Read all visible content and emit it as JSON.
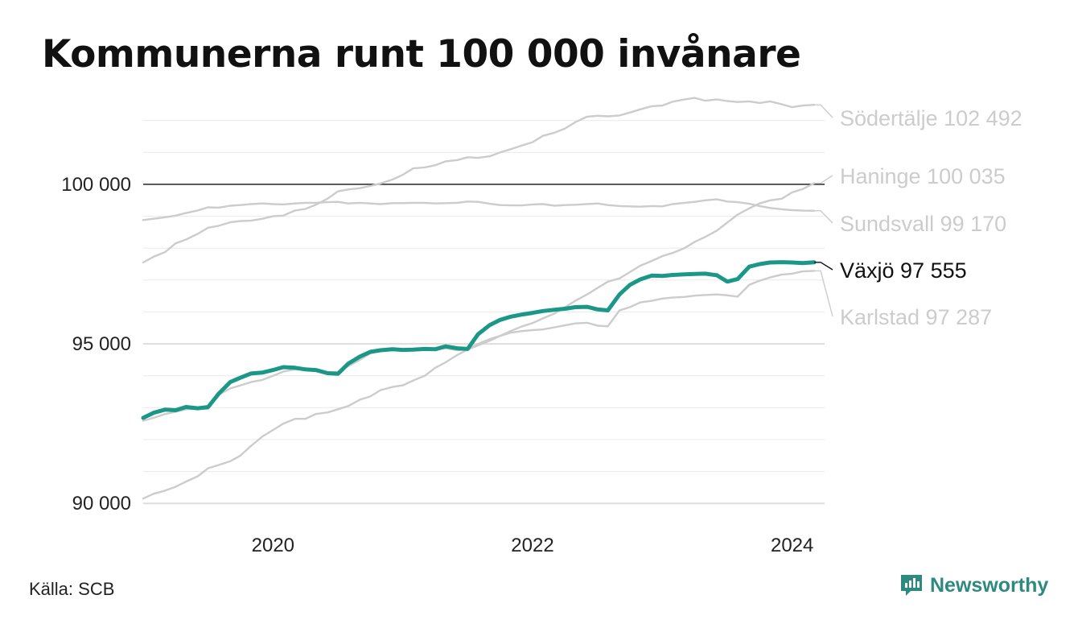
{
  "title": "Kommunerna runt 100 000 invånare",
  "source": "Källa: SCB",
  "brand": "Newsworthy",
  "icons": {
    "brand_logo": "newsworthy-logo-icon"
  },
  "colors": {
    "highlight": "#1a9786",
    "muted": "#cccccc",
    "reference_line": "#111111",
    "grid": "#e3e3e3",
    "brand": "#2e8a80"
  },
  "chart_data": {
    "type": "line",
    "title": "Kommunerna runt 100 000 invånare",
    "xlim": [
      2019.0,
      2024.25
    ],
    "ylim": [
      89500,
      102800
    ],
    "x_ticks": [
      2020,
      2022,
      2024
    ],
    "x_tick_labels": [
      "2020",
      "2022",
      "2024"
    ],
    "y_ticks": [
      90000,
      95000,
      100000
    ],
    "y_tick_labels": [
      "90 000",
      "95 000",
      "100 000"
    ],
    "reference_line": 100000,
    "grid": true,
    "x": [
      2019.0,
      2019.08,
      2019.17,
      2019.25,
      2019.33,
      2019.42,
      2019.5,
      2019.58,
      2019.67,
      2019.75,
      2019.83,
      2019.92,
      2020.0,
      2020.08,
      2020.17,
      2020.25,
      2020.33,
      2020.42,
      2020.5,
      2020.58,
      2020.67,
      2020.75,
      2020.83,
      2020.92,
      2021.0,
      2021.08,
      2021.17,
      2021.25,
      2021.33,
      2021.42,
      2021.5,
      2021.58,
      2021.67,
      2021.75,
      2021.83,
      2021.92,
      2022.0,
      2022.08,
      2022.17,
      2022.25,
      2022.33,
      2022.42,
      2022.5,
      2022.58,
      2022.67,
      2022.75,
      2022.83,
      2022.92,
      2023.0,
      2023.08,
      2023.17,
      2023.25,
      2023.33,
      2023.42,
      2023.5,
      2023.58,
      2023.67,
      2023.75,
      2023.83,
      2023.92,
      2024.0,
      2024.08,
      2024.17
    ],
    "series": [
      {
        "name": "Södertälje",
        "end_label": "Södertälje 102 492",
        "highlight": false,
        "values": [
          97550,
          97730,
          97880,
          98150,
          98270,
          98450,
          98640,
          98700,
          98810,
          98850,
          98860,
          98920,
          99000,
          99020,
          99180,
          99230,
          99360,
          99550,
          99780,
          99840,
          99880,
          99950,
          100030,
          100150,
          100300,
          100500,
          100530,
          100600,
          100720,
          100760,
          100850,
          100830,
          100880,
          101000,
          101100,
          101220,
          101320,
          101520,
          101620,
          101750,
          101950,
          102120,
          102150,
          102130,
          102160,
          102250,
          102350,
          102450,
          102470,
          102590,
          102660,
          102710,
          102620,
          102660,
          102610,
          102580,
          102600,
          102550,
          102600,
          102510,
          102420,
          102470,
          102492
        ]
      },
      {
        "name": "Haninge",
        "end_label": "Haninge 100 035",
        "highlight": false,
        "values": [
          90150,
          90300,
          90400,
          90520,
          90680,
          90850,
          91100,
          91200,
          91320,
          91500,
          91800,
          92100,
          92300,
          92500,
          92650,
          92650,
          92800,
          92850,
          92950,
          93050,
          93250,
          93350,
          93550,
          93650,
          93700,
          93850,
          94000,
          94250,
          94420,
          94650,
          94820,
          94950,
          95100,
          95250,
          95400,
          95550,
          95650,
          95800,
          95950,
          96150,
          96350,
          96550,
          96750,
          96950,
          97050,
          97250,
          97450,
          97600,
          97750,
          97850,
          98000,
          98200,
          98350,
          98550,
          98800,
          99050,
          99250,
          99400,
          99500,
          99550,
          99750,
          99850,
          100035
        ]
      },
      {
        "name": "Sundsvall",
        "end_label": "Sundsvall  99 170",
        "highlight": false,
        "values": [
          98880,
          98920,
          98970,
          99020,
          99100,
          99180,
          99280,
          99270,
          99330,
          99350,
          99380,
          99400,
          99380,
          99370,
          99400,
          99420,
          99420,
          99440,
          99450,
          99400,
          99420,
          99400,
          99380,
          99410,
          99410,
          99420,
          99420,
          99400,
          99410,
          99420,
          99460,
          99450,
          99390,
          99350,
          99340,
          99340,
          99370,
          99380,
          99330,
          99350,
          99360,
          99380,
          99400,
          99350,
          99320,
          99310,
          99300,
          99320,
          99310,
          99380,
          99420,
          99450,
          99500,
          99530,
          99460,
          99440,
          99390,
          99320,
          99260,
          99220,
          99190,
          99175,
          99170
        ]
      },
      {
        "name": "Växjö",
        "end_label": "Växjö  97 555",
        "highlight": true,
        "values": [
          92680,
          92840,
          92940,
          92920,
          93020,
          92980,
          93020,
          93430,
          93800,
          93940,
          94070,
          94100,
          94180,
          94270,
          94250,
          94200,
          94180,
          94080,
          94060,
          94380,
          94600,
          94750,
          94800,
          94830,
          94810,
          94820,
          94840,
          94830,
          94920,
          94860,
          94840,
          95300,
          95590,
          95750,
          95850,
          95920,
          95970,
          96030,
          96070,
          96100,
          96150,
          96160,
          96080,
          96050,
          96550,
          96850,
          97020,
          97140,
          97130,
          97160,
          97180,
          97190,
          97200,
          97150,
          96950,
          97030,
          97420,
          97500,
          97550,
          97560,
          97550,
          97530,
          97555
        ]
      },
      {
        "name": "Karlstad",
        "end_label": "Karlstad  97 287",
        "highlight": false,
        "values": [
          92590,
          92680,
          92800,
          92870,
          92950,
          92970,
          92960,
          93400,
          93600,
          93700,
          93800,
          93870,
          94000,
          94130,
          94200,
          94190,
          94180,
          94100,
          94120,
          94300,
          94500,
          94700,
          94780,
          94800,
          94830,
          94840,
          94850,
          94850,
          94860,
          94800,
          94820,
          95000,
          95150,
          95250,
          95350,
          95400,
          95430,
          95450,
          95520,
          95580,
          95640,
          95660,
          95570,
          95550,
          96050,
          96150,
          96300,
          96350,
          96420,
          96450,
          96470,
          96510,
          96530,
          96550,
          96520,
          96480,
          96850,
          96980,
          97080,
          97170,
          97200,
          97270,
          97287
        ]
      }
    ]
  }
}
